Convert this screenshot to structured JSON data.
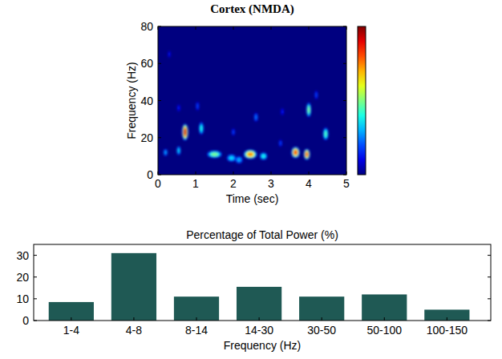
{
  "chart_data": [
    {
      "type": "heatmap",
      "title": "Cortex (NMDA)",
      "x_label": "Time (sec)",
      "y_label": "Frequency (Hz)",
      "xlim": [
        0,
        5
      ],
      "xticks": [
        0,
        1,
        2,
        3,
        4,
        5
      ],
      "ylim": [
        0,
        80
      ],
      "yticks": [
        0,
        20,
        40,
        60,
        80
      ],
      "colorbar_range": [
        0,
        1
      ],
      "spots": [
        {
          "t": 0.72,
          "f": 23,
          "width": 0.16,
          "height": 9,
          "power": 0.92
        },
        {
          "t": 0.55,
          "f": 13,
          "width": 0.1,
          "height": 5,
          "power": 0.35
        },
        {
          "t": 1.15,
          "f": 25,
          "width": 0.12,
          "height": 7,
          "power": 0.4
        },
        {
          "t": 1.05,
          "f": 37,
          "width": 0.08,
          "height": 5,
          "power": 0.2
        },
        {
          "t": 0.55,
          "f": 36,
          "width": 0.08,
          "height": 4,
          "power": 0.15
        },
        {
          "t": 0.2,
          "f": 12,
          "width": 0.1,
          "height": 4,
          "power": 0.3
        },
        {
          "t": 1.5,
          "f": 11,
          "width": 0.4,
          "height": 4,
          "power": 0.5
        },
        {
          "t": 1.95,
          "f": 9,
          "width": 0.25,
          "height": 4,
          "power": 0.35
        },
        {
          "t": 2.15,
          "f": 8,
          "width": 0.2,
          "height": 4,
          "power": 0.3
        },
        {
          "t": 2.45,
          "f": 11,
          "width": 0.35,
          "height": 5,
          "power": 0.75
        },
        {
          "t": 2.8,
          "f": 10,
          "width": 0.2,
          "height": 4,
          "power": 0.4
        },
        {
          "t": 2.0,
          "f": 23,
          "width": 0.08,
          "height": 4,
          "power": 0.2
        },
        {
          "t": 2.6,
          "f": 31,
          "width": 0.1,
          "height": 5,
          "power": 0.25
        },
        {
          "t": 3.65,
          "f": 12,
          "width": 0.22,
          "height": 6,
          "power": 0.82
        },
        {
          "t": 3.95,
          "f": 11,
          "width": 0.16,
          "height": 6,
          "power": 0.8
        },
        {
          "t": 4.0,
          "f": 35,
          "width": 0.12,
          "height": 8,
          "power": 0.5
        },
        {
          "t": 4.45,
          "f": 22,
          "width": 0.14,
          "height": 7,
          "power": 0.45
        },
        {
          "t": 4.2,
          "f": 43,
          "width": 0.08,
          "height": 5,
          "power": 0.2
        },
        {
          "t": 0.3,
          "f": 65,
          "width": 0.06,
          "height": 4,
          "power": 0.15
        },
        {
          "t": 3.3,
          "f": 34,
          "width": 0.08,
          "height": 4,
          "power": 0.15
        },
        {
          "t": 3.25,
          "f": 17,
          "width": 0.08,
          "height": 4,
          "power": 0.2
        }
      ]
    },
    {
      "type": "bar",
      "title": "Percentage of Total Power (%)",
      "x_label": "Frequency (Hz)",
      "categories": [
        "1-4",
        "4-8",
        "8-14",
        "14-30",
        "30-50",
        "50-100",
        "100-150"
      ],
      "values": [
        8.5,
        31,
        11,
        15.5,
        11,
        12,
        5
      ],
      "color": "#1f5954",
      "ylim": [
        0,
        35
      ],
      "yticks": [
        0,
        10,
        20,
        30
      ]
    }
  ]
}
